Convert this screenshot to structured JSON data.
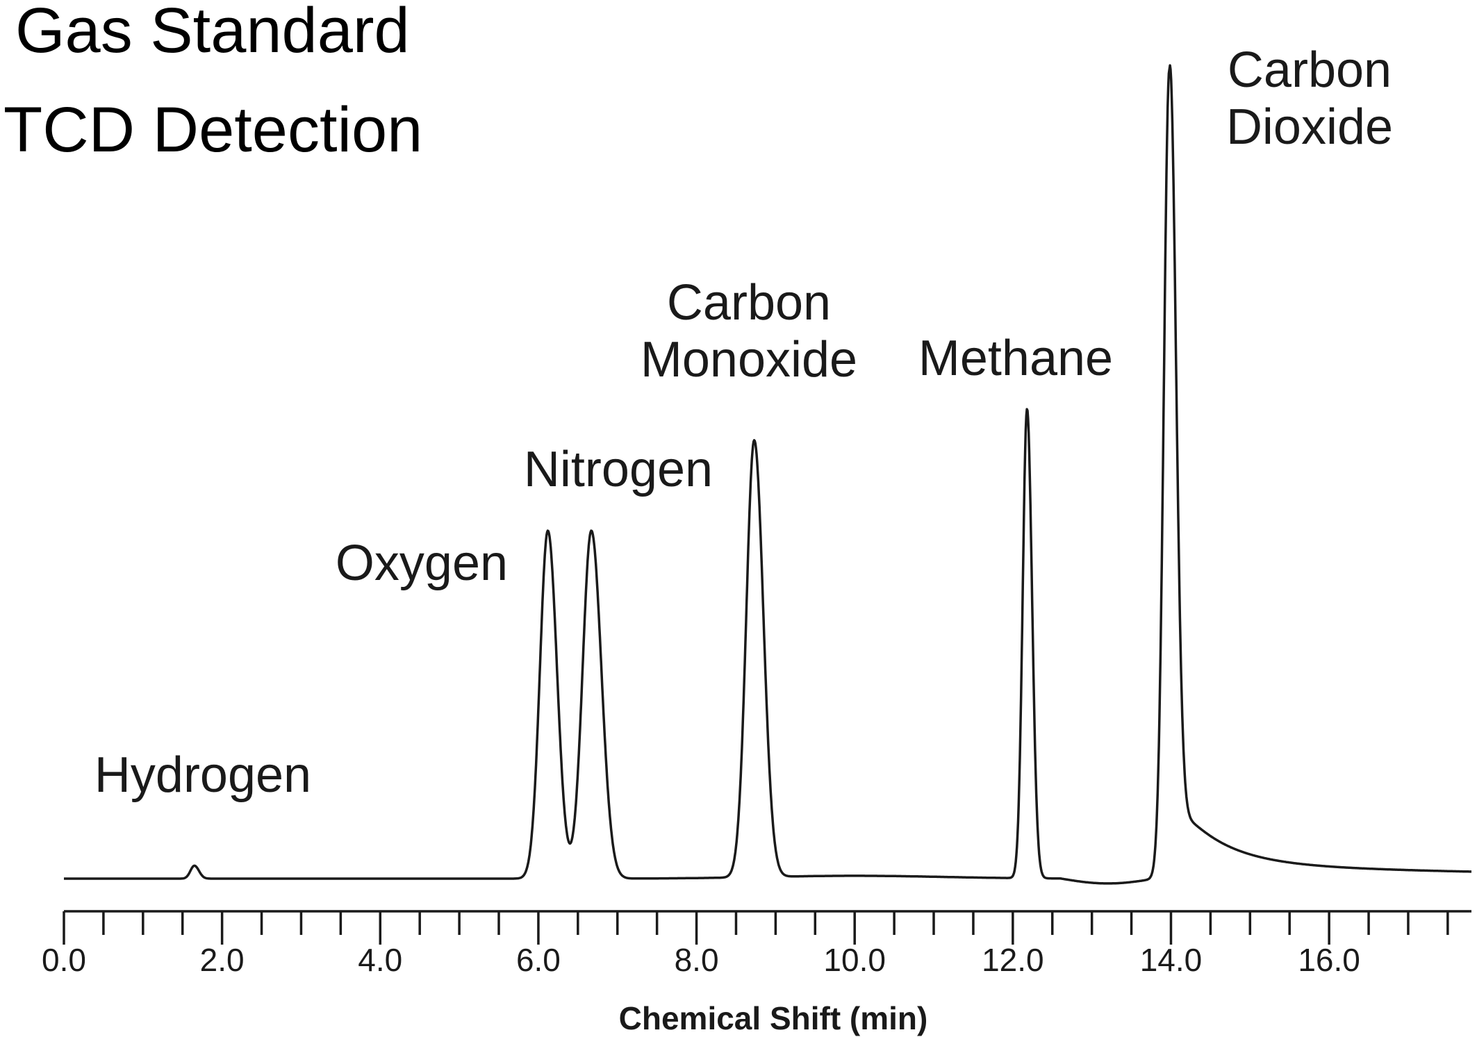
{
  "chart_data": {
    "type": "line",
    "title": [
      "Gas Standard",
      "TCD Detection"
    ],
    "xlabel": "Chemical Shift (min)",
    "ylabel": "",
    "xlim": [
      0,
      17.8
    ],
    "ylim": [
      0,
      100
    ],
    "grid": false,
    "legend": "none",
    "x_ticks": [
      {
        "value": 0,
        "label": "0.0"
      },
      {
        "value": 2,
        "label": "2.0"
      },
      {
        "value": 4,
        "label": "4.0"
      },
      {
        "value": 6,
        "label": "6.0"
      },
      {
        "value": 8,
        "label": "8.0"
      },
      {
        "value": 10,
        "label": "10.0"
      },
      {
        "value": 12,
        "label": "12.0"
      },
      {
        "value": 14,
        "label": "14.0"
      },
      {
        "value": 16,
        "label": "16.0"
      }
    ],
    "series": [
      {
        "color": "#1a1a1a",
        "peaks": [
          {
            "label": [
              "Hydrogen"
            ],
            "time": 1.65,
            "height": 1.6
          },
          {
            "label": [
              "Oxygen"
            ],
            "time": 6.12,
            "height": 43
          },
          {
            "label": [
              "Nitrogen"
            ],
            "time": 6.67,
            "height": 43
          },
          {
            "label": [
              "Carbon",
              "Monoxide"
            ],
            "time": 8.73,
            "height": 54
          },
          {
            "label": [
              "Methane"
            ],
            "time": 12.18,
            "height": 58
          },
          {
            "label": [
              "Carbon",
              "Dioxide"
            ],
            "time": 13.98,
            "height": 100
          }
        ]
      }
    ]
  }
}
